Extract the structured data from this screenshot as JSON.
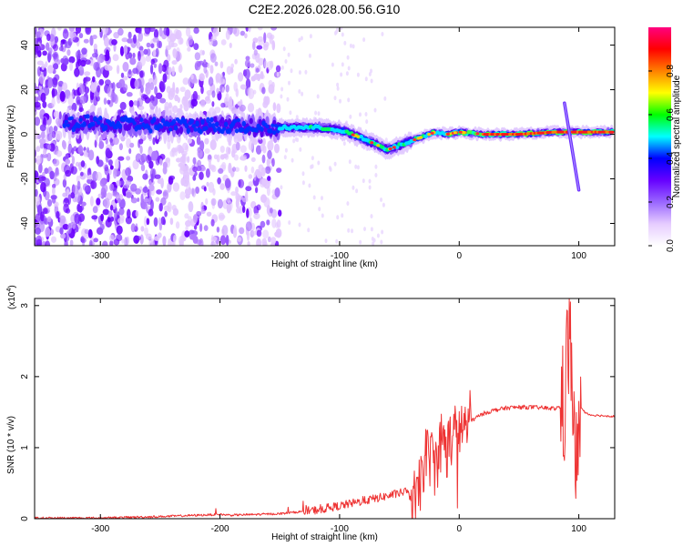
{
  "page": {
    "title": "C2E2.2026.028.00.56.G10"
  },
  "chart_data": [
    {
      "type": "heatmap",
      "title": "C2E2.2026.028.00.56.G10",
      "xlabel": "Height of straight line (km)",
      "ylabel": "Frequency (Hz)",
      "xlim": [
        -355,
        130
      ],
      "ylim": [
        -50,
        48
      ],
      "x_ticks": [
        -300,
        -200,
        -100,
        0,
        100
      ],
      "x_tick_labels": [
        "-300",
        "-200",
        "-100",
        "0",
        "100"
      ],
      "y_ticks": [
        -40,
        -20,
        0,
        20,
        40
      ],
      "y_tick_labels": [
        "-40",
        "-20",
        "0",
        "20",
        "40"
      ],
      "colorbar": {
        "label": "Normalized spectral amplitude",
        "range": [
          0,
          1
        ],
        "ticks": [
          0,
          0.2,
          0.4,
          0.6,
          0.8
        ],
        "tick_labels": [
          "0.0",
          "0.2",
          "0.4",
          "0.6",
          "0.8"
        ],
        "colormap": [
          "#ffffff",
          "#e6ccff",
          "#9966ff",
          "#6600ff",
          "#0000ff",
          "#00ffff",
          "#00ff00",
          "#ffff00",
          "#ff8000",
          "#ff0000",
          "#ff0080"
        ]
      },
      "ridge": {
        "x": [
          -300,
          -250,
          -200,
          -150,
          -120,
          -100,
          -80,
          -60,
          -50,
          -40,
          -30,
          -20,
          -10,
          0,
          20,
          50,
          80,
          90,
          100,
          130
        ],
        "y": [
          5,
          4,
          4,
          3,
          3,
          2,
          -2,
          -7,
          -5,
          -3,
          -1,
          1,
          0,
          1,
          0,
          0,
          1,
          1,
          1,
          1
        ]
      },
      "spike": {
        "x": [
          88,
          100
        ],
        "y": [
          14,
          -25
        ]
      }
    },
    {
      "type": "line",
      "xlabel": "Height of straight line (km)",
      "ylabel": "SNR (10 * v/v)",
      "scale_label": "(x10",
      "scale_exponent": "4",
      "scale_suffix": ")",
      "xlim": [
        -355,
        130
      ],
      "ylim": [
        0,
        3.1
      ],
      "x_ticks": [
        -300,
        -200,
        -100,
        0,
        100
      ],
      "x_tick_labels": [
        "-300",
        "-200",
        "-100",
        "0",
        "100"
      ],
      "y_ticks": [
        0,
        1,
        2,
        3
      ],
      "y_tick_labels": [
        "0",
        "1",
        "2",
        "3"
      ],
      "color": "#ee3333",
      "series": [
        {
          "name": "SNR",
          "x": [
            -355,
            -300,
            -250,
            -200,
            -190,
            -150,
            -120,
            -100,
            -80,
            -60,
            -45,
            -35,
            -30,
            -25,
            -20,
            -15,
            -10,
            -5,
            0,
            10,
            20,
            30,
            40,
            50,
            60,
            70,
            80,
            88,
            90,
            92,
            95,
            97,
            100,
            105,
            110,
            120,
            130
          ],
          "y": [
            0.01,
            0.01,
            0.03,
            0.06,
            0.05,
            0.07,
            0.12,
            0.18,
            0.25,
            0.32,
            0.38,
            0.2,
            0.8,
            0.9,
            0.75,
            1.1,
            1.0,
            1.2,
            1.25,
            1.38,
            1.48,
            1.53,
            1.56,
            1.57,
            1.57,
            1.56,
            1.55,
            1.6,
            2.2,
            2.6,
            1.8,
            0.3,
            1.6,
            1.5,
            1.46,
            1.45,
            1.44
          ]
        }
      ]
    }
  ]
}
